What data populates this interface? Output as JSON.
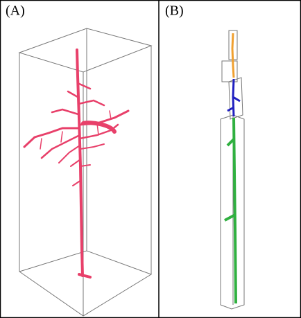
{
  "panels": [
    {
      "label": "(A)"
    },
    {
      "label": "(B)"
    }
  ]
}
